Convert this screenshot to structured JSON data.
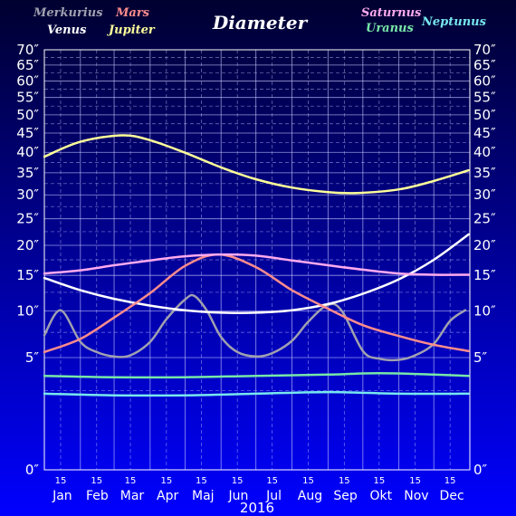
{
  "chart_data": {
    "type": "line",
    "title": "Diameter",
    "year": "2016",
    "months": [
      "Jan",
      "Feb",
      "Mar",
      "Apr",
      "Maj",
      "Jun",
      "Jul",
      "Aug",
      "Sep",
      "Okt",
      "Nov",
      "Dec"
    ],
    "mid_month_label": "15",
    "ylim": [
      0,
      70
    ],
    "y_ticks": [
      0,
      5,
      10,
      15,
      20,
      25,
      30,
      35,
      40,
      45,
      50,
      55,
      60,
      65,
      70
    ],
    "y_tick_labels": [
      "0″",
      "5″",
      "10″",
      "15″",
      "20″",
      "25″",
      "30″",
      "35″",
      "40″",
      "45″",
      "50″",
      "55″",
      "60″",
      "65″",
      "70″"
    ],
    "y_scale": "sqrt",
    "grid": true,
    "legend": "top",
    "colors": {
      "background_top": "#000030",
      "background_bottom": "#0000ff",
      "grid": "#c8c8ff",
      "Merkurius": "#a0a0b0",
      "Venus": "#ffffff",
      "Mars": "#ff8c8c",
      "Jupiter": "#ffff99",
      "Saturnus": "#ffaaee",
      "Uranus": "#77e7a8",
      "Neptunus": "#77e7ee"
    },
    "series": [
      {
        "name": "Merkurius",
        "color": "#a0a0b0",
        "x": [
          "2016-01-01",
          "2016-01-15",
          "2016-02-01",
          "2016-02-15",
          "2016-03-01",
          "2016-03-15",
          "2016-04-01",
          "2016-04-15",
          "2016-05-01",
          "2016-05-09",
          "2016-05-20",
          "2016-06-01",
          "2016-06-15",
          "2016-07-01",
          "2016-07-15",
          "2016-08-01",
          "2016-08-15",
          "2016-09-01",
          "2016-09-13",
          "2016-10-01",
          "2016-10-15",
          "2016-11-01",
          "2016-11-15",
          "2016-12-01",
          "2016-12-15",
          "2016-12-28"
        ],
        "y": [
          7.2,
          10.1,
          6.5,
          5.5,
          5.1,
          5.2,
          6.5,
          9.0,
          11.5,
          12.0,
          10.0,
          7.0,
          5.5,
          5.1,
          5.4,
          6.6,
          8.7,
          10.8,
          10.0,
          5.6,
          4.9,
          4.8,
          5.2,
          6.3,
          8.8,
          10.1
        ]
      },
      {
        "name": "Venus",
        "color": "#ffffff",
        "x": [
          "2016-01-01",
          "2016-02-01",
          "2016-03-01",
          "2016-04-01",
          "2016-05-01",
          "2016-06-01",
          "2016-07-01",
          "2016-08-01",
          "2016-09-01",
          "2016-10-01",
          "2016-11-01",
          "2016-12-01",
          "2016-12-31"
        ],
        "y": [
          14.6,
          12.8,
          11.6,
          10.7,
          10.1,
          9.8,
          9.8,
          10.1,
          10.9,
          12.3,
          14.4,
          17.5,
          22.0
        ]
      },
      {
        "name": "Mars",
        "color": "#ff8c8c",
        "x": [
          "2016-01-01",
          "2016-02-01",
          "2016-03-01",
          "2016-04-01",
          "2016-05-01",
          "2016-05-30",
          "2016-07-01",
          "2016-08-01",
          "2016-09-01",
          "2016-10-01",
          "2016-11-01",
          "2016-12-01",
          "2016-12-31"
        ],
        "y": [
          5.5,
          6.8,
          9.2,
          12.4,
          16.5,
          18.4,
          16.3,
          12.8,
          10.3,
          8.3,
          7.1,
          6.2,
          5.6
        ]
      },
      {
        "name": "Jupiter",
        "color": "#ffff99",
        "x": [
          "2016-01-01",
          "2016-02-01",
          "2016-03-08",
          "2016-04-01",
          "2016-05-01",
          "2016-06-01",
          "2016-07-01",
          "2016-08-01",
          "2016-09-01",
          "2016-09-26",
          "2016-11-01",
          "2016-12-01",
          "2016-12-31"
        ],
        "y": [
          38.9,
          42.7,
          44.4,
          43.1,
          39.9,
          36.3,
          33.5,
          31.6,
          30.6,
          30.4,
          31.2,
          33.1,
          35.6
        ]
      },
      {
        "name": "Saturnus",
        "color": "#ffaaee",
        "x": [
          "2016-01-01",
          "2016-02-01",
          "2016-03-01",
          "2016-04-01",
          "2016-05-01",
          "2016-06-03",
          "2016-07-01",
          "2016-08-01",
          "2016-09-01",
          "2016-10-01",
          "2016-11-01",
          "2016-12-01",
          "2016-12-31"
        ],
        "y": [
          15.3,
          15.8,
          16.6,
          17.4,
          18.1,
          18.4,
          18.2,
          17.4,
          16.6,
          15.9,
          15.3,
          15.1,
          15.1
        ]
      },
      {
        "name": "Uranus",
        "color": "#77e7a8",
        "x": [
          "2016-01-01",
          "2016-03-01",
          "2016-05-01",
          "2016-07-01",
          "2016-09-01",
          "2016-10-15",
          "2016-12-01",
          "2016-12-31"
        ],
        "y": [
          3.5,
          3.4,
          3.4,
          3.5,
          3.6,
          3.7,
          3.6,
          3.5
        ]
      },
      {
        "name": "Neptunus",
        "color": "#77e7ee",
        "x": [
          "2016-01-01",
          "2016-03-01",
          "2016-05-01",
          "2016-07-01",
          "2016-09-02",
          "2016-11-01",
          "2016-12-31"
        ],
        "y": [
          2.3,
          2.2,
          2.2,
          2.3,
          2.4,
          2.3,
          2.3
        ]
      }
    ]
  }
}
